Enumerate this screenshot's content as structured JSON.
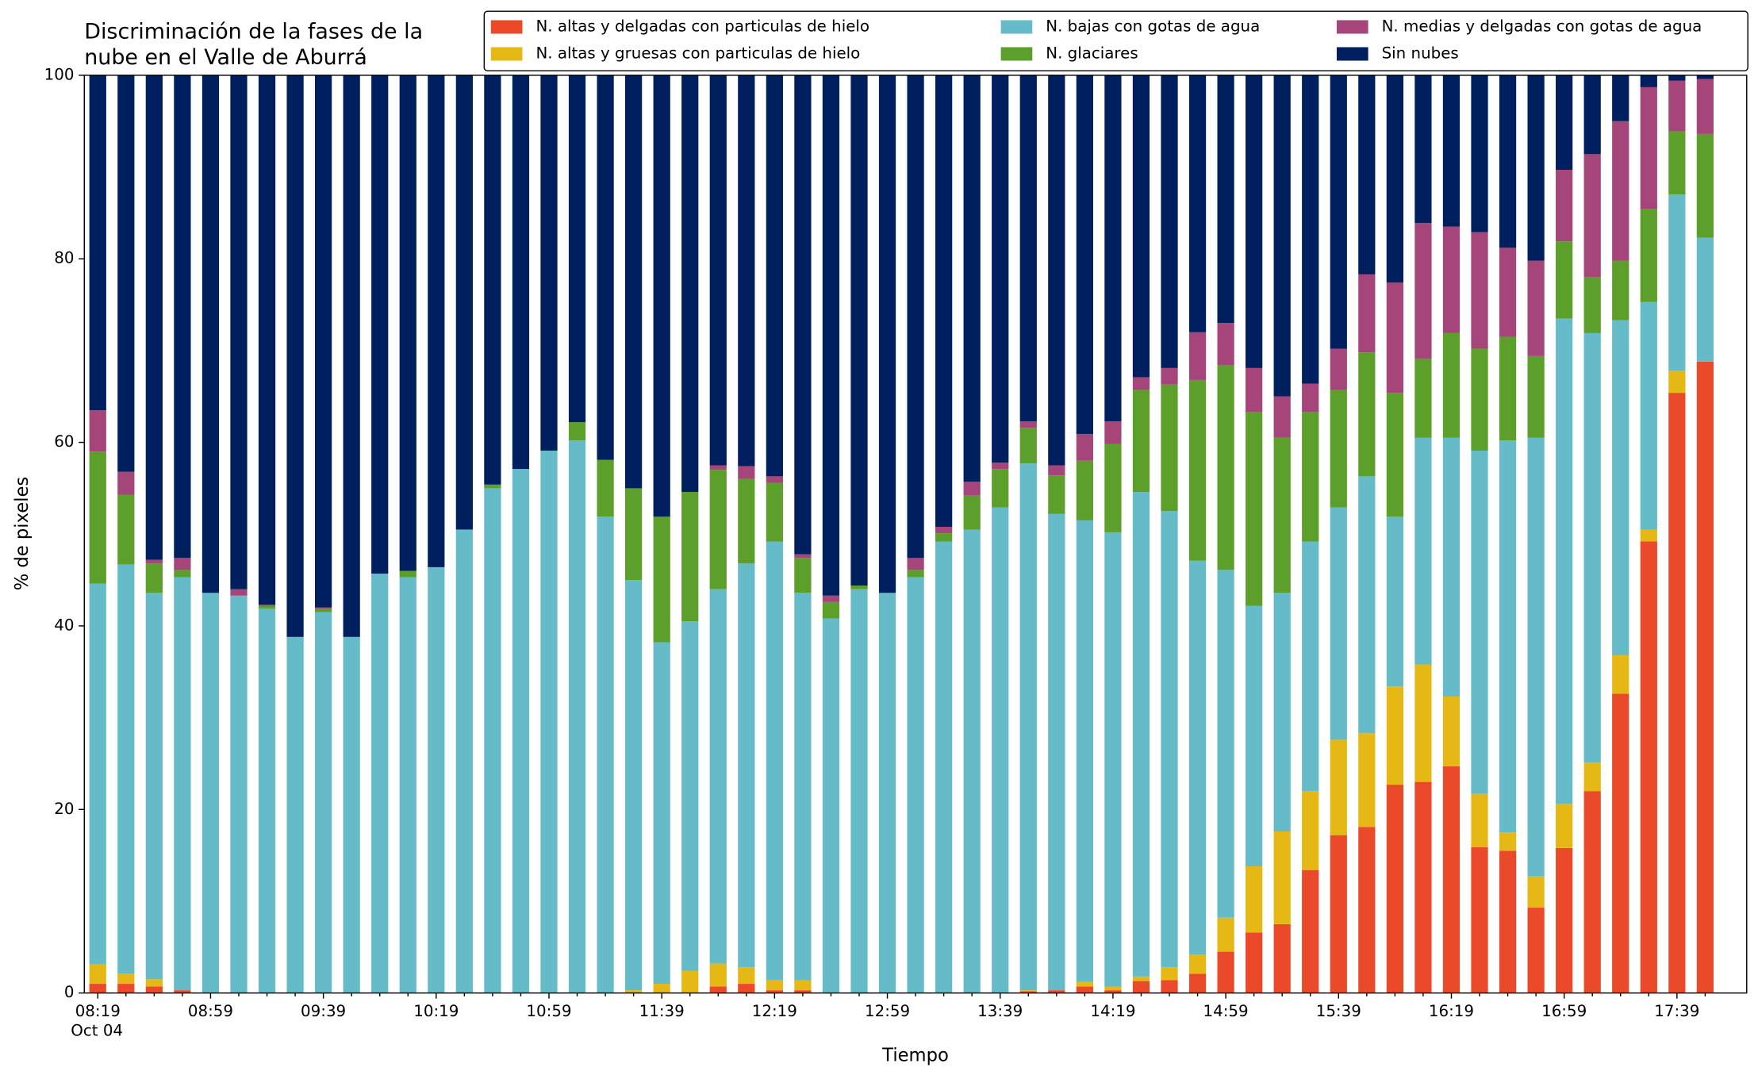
{
  "chart_data": {
    "type": "stacked_bar",
    "title": [
      "Discriminación de la fases de la",
      "nube en el Valle de Aburrá"
    ],
    "xlabel": "Tiempo",
    "ylabel": "% de pixeles",
    "date_label": "Oct 04",
    "categories": [
      "08:19",
      null,
      null,
      null,
      "08:59",
      null,
      null,
      null,
      "09:39",
      null,
      null,
      null,
      "10:19",
      null,
      null,
      null,
      "10:59",
      null,
      null,
      null,
      "11:39",
      null,
      null,
      null,
      "12:19",
      null,
      null,
      null,
      "12:59",
      null,
      null,
      null,
      "13:39",
      null,
      null,
      null,
      "14:19",
      null,
      null,
      null,
      "14:59",
      null,
      null,
      null,
      "15:39",
      null,
      null,
      null,
      "16:19",
      null,
      null,
      null,
      "16:59",
      null,
      null,
      null,
      "17:39",
      null
    ],
    "ylim": [
      0,
      100
    ],
    "yticks": [
      0,
      20,
      40,
      60,
      80,
      100
    ],
    "legend": {
      "loc": "upper right",
      "ncol": 3
    },
    "series": [
      {
        "name": "N. altas y delgadas con particulas de hielo",
        "color": "#ea4a2a",
        "values": [
          1.0,
          1.0,
          0.7,
          0.3,
          0,
          0,
          0,
          0,
          0,
          0,
          0,
          0,
          0,
          0,
          0,
          0,
          0,
          0,
          0,
          0,
          0,
          0,
          0.7,
          1.0,
          0.3,
          0.3,
          0,
          0,
          0,
          0,
          0,
          0,
          0,
          0.2,
          0.3,
          0.7,
          0.3,
          1.3,
          1.4,
          2.1,
          4.5,
          6.6,
          7.5,
          13.4,
          17.2,
          18.1,
          22.7,
          23.0,
          24.7,
          15.9,
          15.5,
          9.3,
          15.8,
          22.0,
          32.6,
          49.2,
          65.4,
          68.8
        ]
      },
      {
        "name": "N. altas y gruesas con particulas de hielo",
        "color": "#e6b816",
        "values": [
          2.1,
          1.1,
          0.8,
          0,
          0,
          0,
          0,
          0,
          0,
          0,
          0,
          0,
          0,
          0,
          0,
          0,
          0,
          0,
          0,
          0.3,
          1.0,
          2.4,
          2.5,
          1.8,
          1.1,
          1.1,
          0,
          0,
          0,
          0,
          0,
          0,
          0,
          0.1,
          0,
          0.5,
          0.4,
          0.5,
          1.4,
          2.1,
          3.7,
          7.2,
          10.1,
          8.6,
          10.4,
          10.2,
          10.7,
          12.8,
          7.6,
          5.8,
          2.0,
          3.4,
          4.8,
          3.1,
          4.2,
          1.3,
          2.4,
          0
        ]
      },
      {
        "name": "N. bajas con gotas de agua",
        "color": "#65bcc8",
        "values": [
          41.5,
          44.6,
          42.1,
          45.0,
          43.6,
          43.3,
          41.9,
          38.8,
          41.5,
          38.8,
          45.7,
          45.3,
          46.4,
          50.5,
          55.0,
          57.1,
          59.1,
          60.2,
          51.9,
          44.7,
          37.2,
          38.1,
          40.8,
          44.0,
          47.8,
          42.2,
          40.8,
          44.0,
          43.6,
          45.3,
          49.2,
          50.5,
          52.9,
          57.4,
          51.9,
          50.3,
          49.5,
          52.8,
          49.7,
          42.9,
          37.9,
          28.4,
          26.0,
          27.2,
          25.3,
          28.0,
          18.5,
          24.7,
          28.2,
          37.4,
          42.7,
          47.8,
          52.9,
          46.8,
          36.5,
          24.8,
          19.2,
          13.5
        ]
      },
      {
        "name": "N. glaciares",
        "color": "#5c9f2a",
        "values": [
          14.4,
          7.6,
          3.2,
          0.8,
          0,
          0,
          0.3,
          0,
          0.4,
          0,
          0,
          0.7,
          0,
          0,
          0.4,
          0,
          0,
          2.0,
          6.2,
          10.0,
          13.7,
          14.1,
          13.0,
          9.2,
          6.4,
          3.8,
          1.8,
          0.4,
          0,
          0.8,
          0.9,
          3.7,
          4.2,
          3.9,
          4.2,
          6.5,
          9.6,
          11.1,
          13.8,
          19.7,
          22.3,
          21.1,
          16.9,
          14.1,
          12.8,
          13.5,
          13.5,
          8.6,
          11.4,
          11.1,
          11.3,
          8.9,
          8.4,
          6.1,
          6.5,
          10.1,
          6.9,
          11.3
        ]
      },
      {
        "name": "N. medias y delgadas con gotas de agua",
        "color": "#a5457a",
        "values": [
          4.5,
          2.5,
          0.4,
          1.3,
          0,
          0.7,
          0.1,
          0,
          0.1,
          0,
          0,
          0,
          0,
          0,
          0,
          0,
          0,
          0,
          0,
          0,
          0,
          0,
          0.5,
          1.4,
          0.7,
          0.4,
          0.7,
          0,
          0,
          1.3,
          0.7,
          1.5,
          0.7,
          0.7,
          1.1,
          2.9,
          2.5,
          1.4,
          1.8,
          5.2,
          4.6,
          4.8,
          4.5,
          3.1,
          4.5,
          8.5,
          12.0,
          14.8,
          11.6,
          12.7,
          9.7,
          10.4,
          7.8,
          13.4,
          15.2,
          13.3,
          5.5,
          6.0
        ]
      },
      {
        "name": "Sin nubes",
        "color": "#001f5f",
        "values": [
          36.5,
          43.2,
          52.8,
          52.6,
          56.4,
          56.0,
          57.7,
          61.2,
          58.0,
          61.2,
          54.3,
          54.0,
          53.6,
          49.5,
          44.6,
          42.9,
          40.9,
          37.8,
          41.9,
          45.0,
          48.1,
          45.4,
          42.5,
          42.6,
          43.7,
          52.2,
          56.7,
          55.6,
          56.4,
          52.6,
          49.2,
          44.3,
          42.2,
          37.7,
          42.5,
          39.1,
          37.7,
          32.9,
          31.9,
          28.0,
          27.0,
          31.9,
          35.0,
          33.6,
          29.8,
          21.7,
          22.6,
          16.1,
          16.5,
          17.1,
          18.8,
          20.2,
          10.3,
          8.6,
          5.0,
          1.3,
          0.6,
          0.4
        ]
      }
    ]
  }
}
